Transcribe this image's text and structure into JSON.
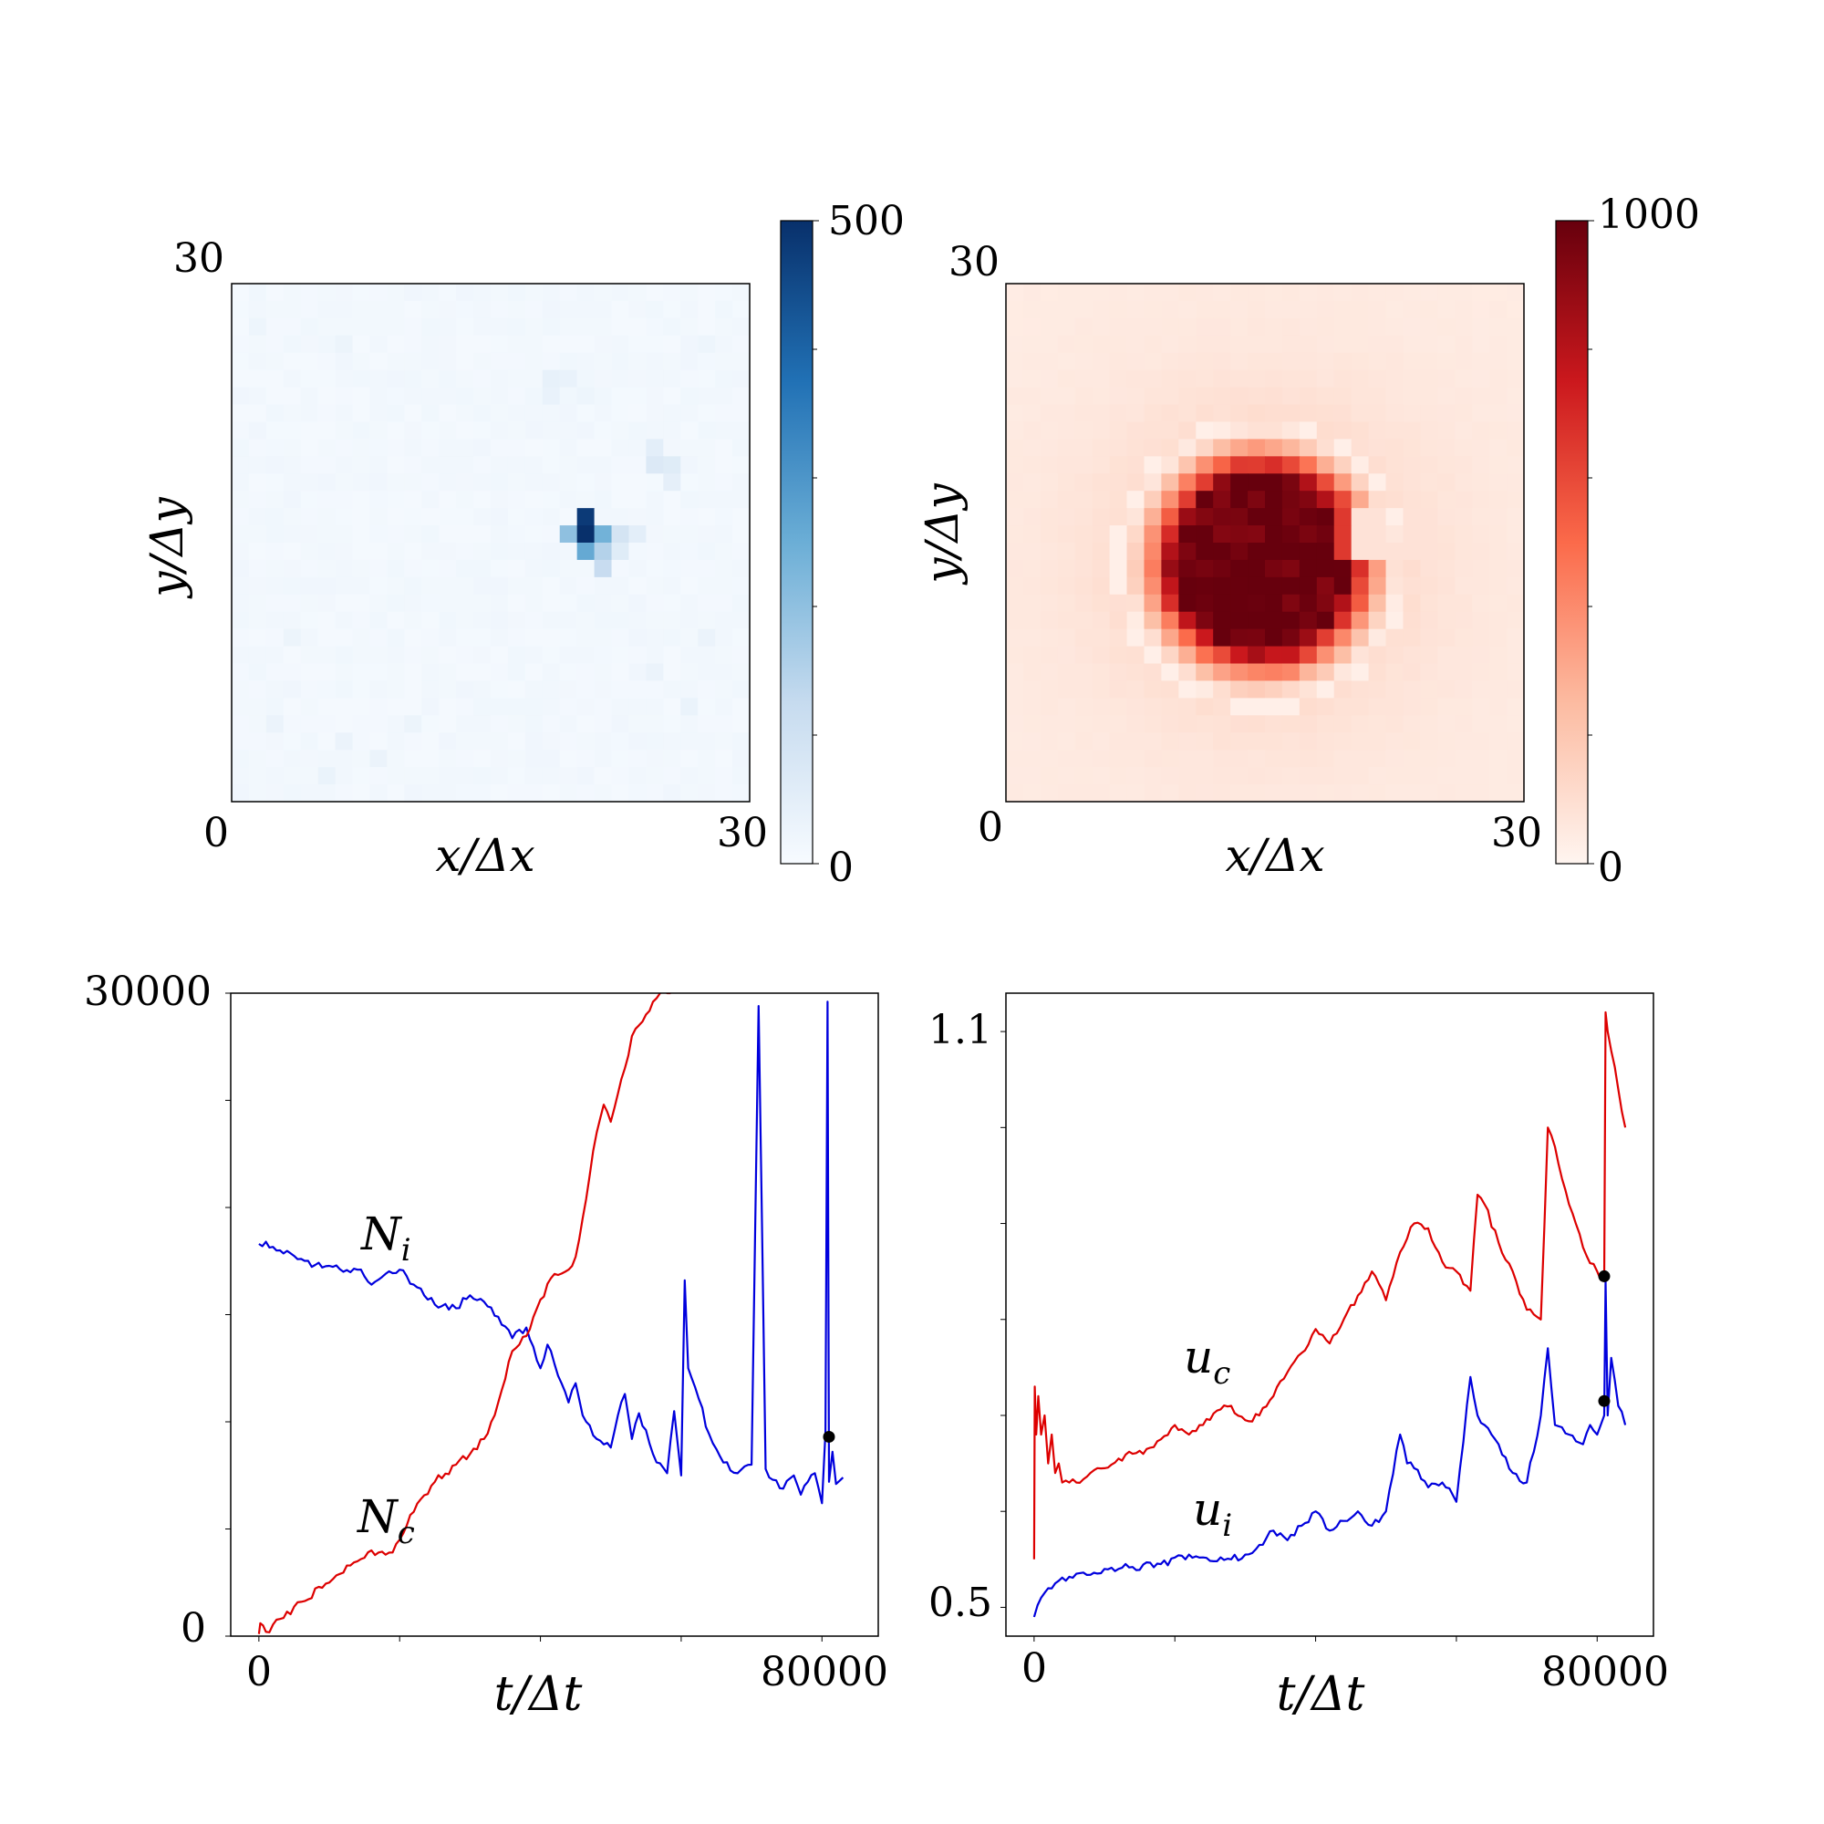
{
  "chart_data": [
    {
      "type": "heatmap",
      "panel": "top-left",
      "xlabel": "x/Δx",
      "ylabel": "y/Δy",
      "x_ticks": [
        "0",
        "30"
      ],
      "y_ticks": [
        "30"
      ],
      "grid_size": 30,
      "colorbar": {
        "colormap": "Blues",
        "min_label": "0",
        "max_label": "500",
        "range": [
          0,
          500
        ]
      },
      "background_value": 12,
      "cells": [
        {
          "col": 20,
          "row": 13,
          "v": 480
        },
        {
          "col": 20,
          "row": 14,
          "v": 500
        },
        {
          "col": 21,
          "row": 14,
          "v": 240
        },
        {
          "col": 19,
          "row": 14,
          "v": 200
        },
        {
          "col": 20,
          "row": 15,
          "v": 260
        },
        {
          "col": 21,
          "row": 15,
          "v": 150
        },
        {
          "col": 21,
          "row": 16,
          "v": 120
        },
        {
          "col": 22,
          "row": 14,
          "v": 90
        },
        {
          "col": 23,
          "row": 14,
          "v": 50
        },
        {
          "col": 22,
          "row": 15,
          "v": 60
        },
        {
          "col": 24,
          "row": 10,
          "v": 70
        },
        {
          "col": 25,
          "row": 10,
          "v": 60
        },
        {
          "col": 24,
          "row": 9,
          "v": 50
        },
        {
          "col": 25,
          "row": 11,
          "v": 45
        },
        {
          "col": 18,
          "row": 5,
          "v": 40
        },
        {
          "col": 19,
          "row": 5,
          "v": 35
        },
        {
          "col": 18,
          "row": 6,
          "v": 35
        },
        {
          "col": 20,
          "row": 6,
          "v": 25
        },
        {
          "col": 2,
          "row": 25,
          "v": 30
        },
        {
          "col": 6,
          "row": 26,
          "v": 30
        },
        {
          "col": 8,
          "row": 27,
          "v": 30
        },
        {
          "col": 10,
          "row": 25,
          "v": 28
        },
        {
          "col": 3,
          "row": 20,
          "v": 28
        },
        {
          "col": 5,
          "row": 28,
          "v": 32
        },
        {
          "col": 24,
          "row": 22,
          "v": 30
        },
        {
          "col": 26,
          "row": 24,
          "v": 32
        },
        {
          "col": 27,
          "row": 20,
          "v": 30
        },
        {
          "col": 1,
          "row": 2,
          "v": 25
        },
        {
          "col": 6,
          "row": 3,
          "v": 28
        },
        {
          "col": 27,
          "row": 3,
          "v": 25
        }
      ]
    },
    {
      "type": "heatmap",
      "panel": "top-right",
      "xlabel": "x/Δx",
      "ylabel": "y/Δy",
      "x_ticks": [
        "0",
        "30"
      ],
      "y_ticks": [
        "30"
      ],
      "grid_size": 30,
      "colorbar": {
        "colormap": "Reds",
        "min_label": "0",
        "max_label": "1000",
        "range": [
          0,
          1000
        ]
      },
      "blob": {
        "center_col": 14.3,
        "center_row": 15.7,
        "core_radius": 4.9,
        "halo_radius": 8.5,
        "notch_col": 20,
        "notch_rows": [
          13,
          15
        ]
      }
    },
    {
      "type": "line",
      "panel": "bottom-left",
      "xlabel": "t/Δt",
      "x_ticks": [
        "0",
        "80000"
      ],
      "y_ticks": [
        "0",
        "30000"
      ],
      "xlim": [
        -4000,
        88000
      ],
      "ylim": [
        0,
        30000
      ],
      "series": [
        {
          "name": "N_i",
          "label_main": "N",
          "label_sub": "i",
          "color": "#0000dd",
          "x": [
            0,
            1000,
            3000,
            6000,
            9000,
            11000,
            12000,
            14000,
            16000,
            18000,
            20000,
            22000,
            24000,
            26000,
            28000,
            30000,
            32000,
            34000,
            36000,
            38000,
            40000,
            41000,
            42000,
            43000,
            44000,
            45000,
            46000,
            48000,
            50000,
            51000,
            52000,
            53000,
            54000,
            56000,
            58000,
            59000,
            60000,
            60500,
            61000,
            62000,
            64000,
            66000,
            68000,
            70000,
            71000,
            72000,
            73000,
            74000,
            76000,
            77000,
            78000,
            79000,
            80000,
            80500,
            80800,
            81000,
            81500,
            82000,
            83000
          ],
          "y": [
            18300,
            18400,
            18000,
            17600,
            17200,
            17300,
            17000,
            17100,
            16400,
            16900,
            17100,
            16400,
            15700,
            15400,
            15300,
            15900,
            15600,
            14900,
            13900,
            14400,
            12500,
            13600,
            12700,
            11800,
            10900,
            11800,
            10300,
            9200,
            8800,
            10300,
            11300,
            9200,
            10400,
            8500,
            7600,
            10500,
            7500,
            16600,
            12500,
            11600,
            9400,
            8100,
            7600,
            8000,
            29400,
            7800,
            7300,
            6900,
            7500,
            6600,
            7200,
            7600,
            6200,
            9500,
            29600,
            7200,
            8600,
            7100,
            7400
          ]
        },
        {
          "name": "N_c",
          "label_main": "N",
          "label_sub": "c",
          "color": "#dd0000",
          "x": [
            0,
            200,
            1000,
            3000,
            6000,
            10000,
            13000,
            16000,
            17000,
            18000,
            19000,
            20000,
            22000,
            25000,
            28000,
            30000,
            32000,
            34000,
            36000,
            38000,
            40000,
            42000,
            44000,
            45000,
            46000,
            47000,
            48000,
            49000,
            50000,
            51000,
            52000,
            53000,
            54000,
            55000,
            56000,
            57000,
            58000,
            58500
          ],
          "y": [
            100,
            600,
            200,
            800,
            1600,
            2500,
            3300,
            4000,
            3900,
            3800,
            3900,
            4500,
            5800,
            7200,
            8000,
            8500,
            9200,
            10900,
            13300,
            14000,
            15700,
            16900,
            17100,
            17700,
            19500,
            21500,
            23500,
            24800,
            24000,
            25300,
            26500,
            28000,
            28500,
            29000,
            29600,
            30000,
            30000,
            30000
          ]
        }
      ],
      "markers": [
        {
          "series": "N_i",
          "x": 81000,
          "y": 9300
        }
      ]
    },
    {
      "type": "line",
      "panel": "bottom-right",
      "xlabel": "t/Δt",
      "x_ticks": [
        "0",
        "80000"
      ],
      "y_ticks": [
        "0.5",
        "1.1"
      ],
      "xlim": [
        -4000,
        88000
      ],
      "ylim": [
        0.47,
        1.14
      ],
      "series": [
        {
          "name": "u_c",
          "label_main": "u",
          "label_sub": "c",
          "color": "#dd0000",
          "x": [
            0,
            100,
            300,
            600,
            1000,
            1500,
            2000,
            2500,
            3000,
            3500,
            4000,
            5000,
            6000,
            8000,
            10000,
            12000,
            14000,
            16000,
            18000,
            20000,
            22000,
            24000,
            26000,
            28000,
            30000,
            32000,
            34000,
            36000,
            38000,
            40000,
            42000,
            44000,
            46000,
            48000,
            50000,
            52000,
            54000,
            56000,
            58000,
            60000,
            62000,
            63000,
            64000,
            66000,
            68000,
            70000,
            72000,
            73000,
            74000,
            76000,
            78000,
            80000,
            81000,
            81200,
            81500,
            82000,
            83000,
            84000
          ],
          "y": [
            0.55,
            0.73,
            0.68,
            0.72,
            0.68,
            0.7,
            0.65,
            0.68,
            0.64,
            0.65,
            0.63,
            0.63,
            0.63,
            0.64,
            0.645,
            0.655,
            0.66,
            0.665,
            0.675,
            0.69,
            0.68,
            0.69,
            0.705,
            0.71,
            0.695,
            0.7,
            0.72,
            0.745,
            0.765,
            0.79,
            0.775,
            0.8,
            0.825,
            0.85,
            0.82,
            0.87,
            0.9,
            0.895,
            0.86,
            0.85,
            0.83,
            0.93,
            0.92,
            0.88,
            0.85,
            0.81,
            0.8,
            1.0,
            0.98,
            0.92,
            0.875,
            0.85,
            0.84,
            1.12,
            1.1,
            1.08,
            1.04,
            1.0
          ]
        },
        {
          "name": "u_i",
          "label_main": "u",
          "label_sub": "i",
          "color": "#0000dd",
          "x": [
            0,
            1000,
            3000,
            6000,
            10000,
            14000,
            18000,
            22000,
            24000,
            26000,
            28000,
            30000,
            32000,
            34000,
            36000,
            38000,
            40000,
            42000,
            44000,
            46000,
            48000,
            50000,
            52000,
            53000,
            54000,
            56000,
            58000,
            60000,
            62000,
            63000,
            64000,
            66000,
            68000,
            70000,
            72000,
            73000,
            74000,
            76000,
            78000,
            79000,
            80000,
            81000,
            81200,
            81500,
            82000,
            83000,
            84000
          ],
          "y": [
            0.49,
            0.51,
            0.525,
            0.535,
            0.54,
            0.542,
            0.545,
            0.555,
            0.552,
            0.548,
            0.55,
            0.555,
            0.565,
            0.58,
            0.57,
            0.585,
            0.6,
            0.58,
            0.59,
            0.6,
            0.585,
            0.6,
            0.68,
            0.65,
            0.645,
            0.625,
            0.63,
            0.61,
            0.74,
            0.7,
            0.69,
            0.67,
            0.64,
            0.63,
            0.7,
            0.77,
            0.69,
            0.68,
            0.67,
            0.69,
            0.68,
            0.7,
            0.84,
            0.7,
            0.76,
            0.71,
            0.69
          ]
        }
      ],
      "markers": [
        {
          "series": "u_c",
          "x": 81000,
          "y": 0.845
        },
        {
          "series": "u_i",
          "x": 81000,
          "y": 0.715
        }
      ]
    }
  ]
}
